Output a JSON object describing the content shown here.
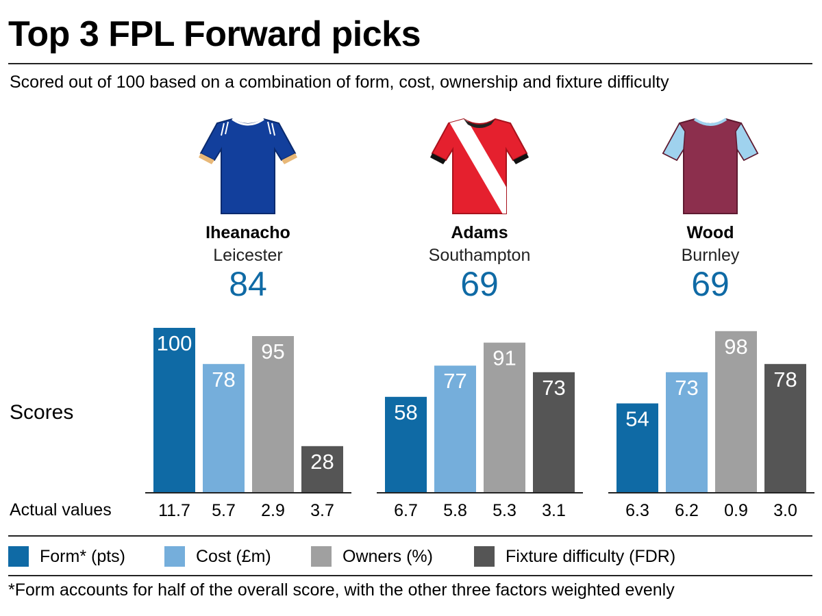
{
  "title": "Top 3 FPL Forward picks",
  "subtitle": "Scored out of 100 based on a combination of form, cost, ownership and fixture difficulty",
  "row_labels": {
    "scores": "Scores",
    "actual": "Actual values"
  },
  "players": [
    {
      "name": "Iheanacho",
      "club": "Leicester",
      "score": "84",
      "shirt": "leicester-shirt-icon"
    },
    {
      "name": "Adams",
      "club": "Southampton",
      "score": "69",
      "shirt": "southampton-shirt-icon"
    },
    {
      "name": "Wood",
      "club": "Burnley",
      "score": "69",
      "shirt": "burnley-shirt-icon"
    }
  ],
  "colors": {
    "form": "#0f6aa5",
    "cost": "#75aedb",
    "owners": "#a0a0a0",
    "fixture": "#555555",
    "score_text": "#0f6aa5",
    "leicester": "#123f9c",
    "southampton": "#e5202e",
    "burnley": "#8c2f4d",
    "burnley_sleeve": "#9fd2ee"
  },
  "legend": [
    {
      "label": "Form* (pts)",
      "color": "#0f6aa5"
    },
    {
      "label": "Cost (£m)",
      "color": "#75aedb"
    },
    {
      "label": "Owners (%)",
      "color": "#a0a0a0"
    },
    {
      "label": "Fixture difficulty (FDR)",
      "color": "#555555"
    }
  ],
  "footnote": "*Form accounts for half of the overall score, with the other three factors weighted evenly",
  "chart_data": {
    "type": "bar",
    "title": "Top 3 FPL Forward picks",
    "ylabel": "Scores",
    "ylim": [
      0,
      100
    ],
    "categories": [
      "Iheanacho",
      "Adams",
      "Wood"
    ],
    "series": [
      {
        "name": "Form* (pts)",
        "values": [
          100,
          58,
          54
        ],
        "actual": [
          "11.7",
          "6.7",
          "6.3"
        ]
      },
      {
        "name": "Cost (£m)",
        "values": [
          78,
          77,
          73
        ],
        "actual": [
          "5.7",
          "5.8",
          "6.2"
        ]
      },
      {
        "name": "Owners (%)",
        "values": [
          95,
          91,
          98
        ],
        "actual": [
          "2.9",
          "5.3",
          "0.9"
        ]
      },
      {
        "name": "Fixture difficulty (FDR)",
        "values": [
          28,
          73,
          78
        ],
        "actual": [
          "3.7",
          "3.1",
          "3.0"
        ]
      }
    ]
  }
}
